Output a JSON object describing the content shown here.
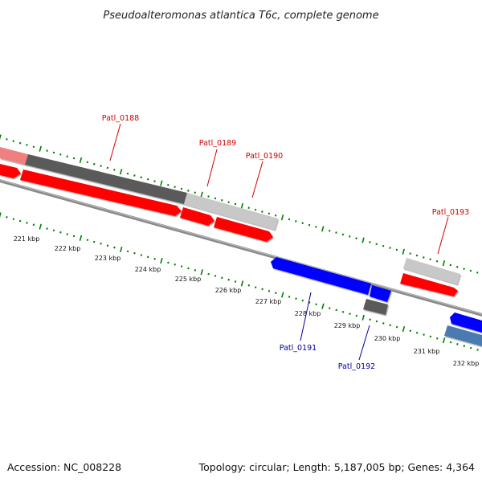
{
  "title": "Pseudoalteromonas atlantica T6c, complete genome",
  "accession": "Accession: NC_008228",
  "summary": "Topology: circular; Length: 5,187,005 bp; Genes: 4,364",
  "colors": {
    "background": "#ffffff",
    "forward_cds": "#ff0000",
    "reverse_cds": "#0000ff",
    "gene_dark": "#5a5a5a",
    "gene_light": "#c8c8c8",
    "gene_pink": "#f08080",
    "reverse_steel": "#4a7ab0",
    "backbone": "#8a8a8a",
    "tick": "#008000",
    "forward_label": "#cc0000",
    "reverse_label": "#000099"
  },
  "scale_labels": [
    "221 kbp",
    "222 kbp",
    "223 kbp",
    "224 kbp",
    "225 kbp",
    "226 kbp",
    "227 kbp",
    "228 kbp",
    "229 kbp",
    "230 kbp",
    "231 kbp",
    "232 kbp"
  ],
  "gene_labels_forward": [
    "Patl_0188",
    "Patl_0189",
    "Patl_0190",
    "Patl_0193"
  ],
  "gene_labels_reverse": [
    "Patl_0191",
    "Patl_0192"
  ]
}
